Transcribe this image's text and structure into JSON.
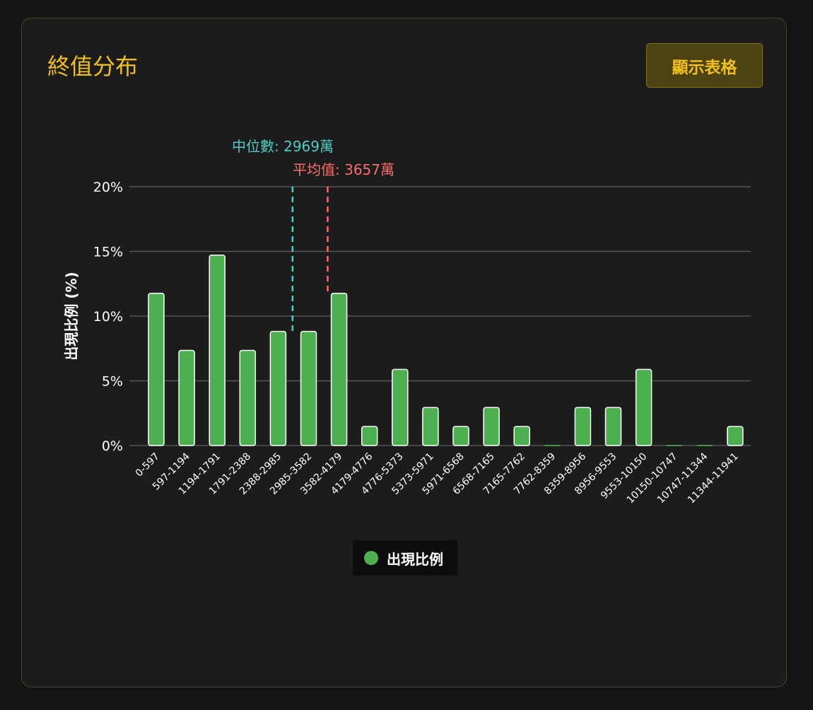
{
  "card": {
    "title": "終值分布",
    "show_table_label": "顯示表格"
  },
  "colors": {
    "accent": "#f2c01a",
    "bar": "#4caf50",
    "median": "#4ecdc4",
    "mean": "#ff6b6b",
    "grid": "#555555",
    "text": "#ffffff"
  },
  "chart_data": {
    "type": "bar",
    "categories": [
      "0-597",
      "597-1194",
      "1194-1791",
      "1791-2388",
      "2388-2985",
      "2985-3582",
      "3582-4179",
      "4179-4776",
      "4776-5373",
      "5373-5971",
      "5971-6568",
      "6568-7165",
      "7165-7762",
      "7762-8359",
      "8359-8956",
      "8956-9553",
      "9553-10150",
      "10150-10747",
      "10747-11344",
      "11344-11941"
    ],
    "series": [
      {
        "name": "出現比例",
        "values": [
          11.76,
          7.35,
          14.71,
          7.35,
          8.82,
          8.82,
          11.76,
          1.47,
          5.88,
          2.94,
          1.47,
          2.94,
          1.47,
          0,
          2.94,
          2.94,
          5.88,
          0,
          0,
          1.47
        ]
      }
    ],
    "ylabel": "出現比例 (%)",
    "ylim": [
      0,
      20
    ],
    "yticks": [
      {
        "value": 0,
        "label": "0%"
      },
      {
        "value": 5,
        "label": "5%"
      },
      {
        "value": 10,
        "label": "10%"
      },
      {
        "value": 15,
        "label": "15%"
      },
      {
        "value": 20,
        "label": "20%"
      }
    ],
    "grid": true,
    "legend_position": "bottom-center",
    "reference_lines": [
      {
        "name": "median",
        "label": "中位數: 2969萬",
        "x_value": 2969,
        "color": "#4ecdc4"
      },
      {
        "name": "mean",
        "label": "平均值: 3657萬",
        "x_value": 3657,
        "color": "#ff6b6b"
      }
    ]
  }
}
